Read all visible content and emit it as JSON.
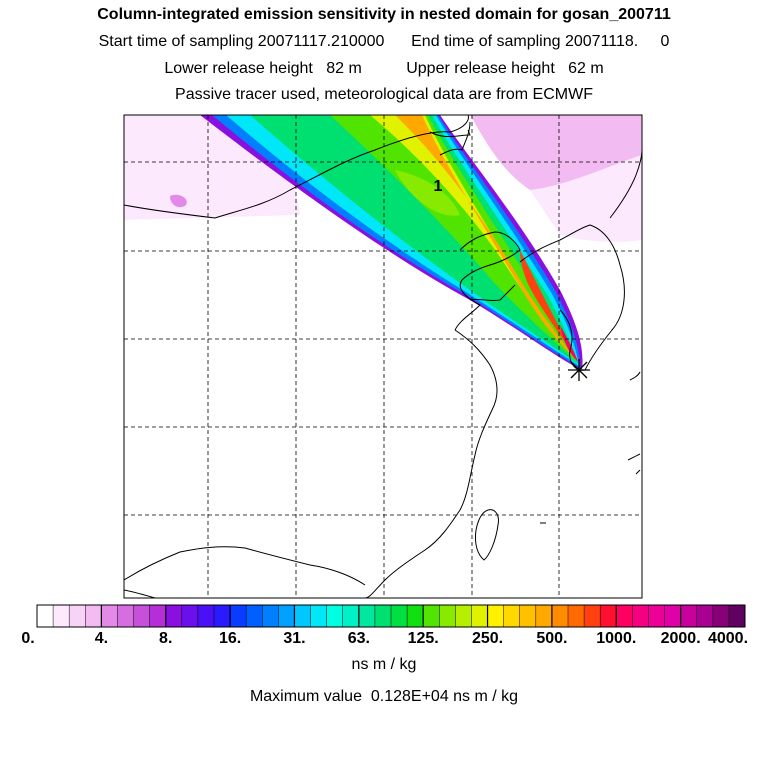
{
  "chart_data": {
    "type": "heatmap",
    "title": "Column-integrated emission sensitivity in nested domain for gosan_200711",
    "subtitle_lines": [
      "Start time of sampling 20071117.210000      End time of sampling 20071118.     0",
      "Lower release height   82 m          Upper release height   62 m",
      "Passive tracer used, meteorological data are from ECMWF"
    ],
    "map_annotation": "1",
    "colorbar": {
      "tick_labels": [
        "0.",
        "4.",
        "8.",
        "16.",
        "31.",
        "63.",
        "125.",
        "250.",
        "500.",
        "1000.",
        "2000.",
        "4000."
      ],
      "colors": [
        "#ffffff",
        "#fde9fd",
        "#f8d3f8",
        "#f2bcf2",
        "#e38ae8",
        "#d66ee0",
        "#c650da",
        "#b52ed8",
        "#8a10e0",
        "#6a10ec",
        "#4a10f6",
        "#2a1aff",
        "#0a3cff",
        "#0060ff",
        "#0080ff",
        "#00a0ff",
        "#00c8ff",
        "#00e8f8",
        "#00ffe0",
        "#00f0c8",
        "#00e8a0",
        "#00e070",
        "#00e040",
        "#10e010",
        "#50e400",
        "#88ea00",
        "#b8ee00",
        "#e0f200",
        "#fff000",
        "#ffd800",
        "#ffc000",
        "#ffa800",
        "#ff8c00",
        "#ff6a00",
        "#ff4010",
        "#ff1030",
        "#ff0060",
        "#f40080",
        "#ec0098",
        "#e000a8",
        "#c8009c",
        "#a80090",
        "#880078",
        "#600060"
      ],
      "units": "ns m / kg"
    },
    "max_value_text": "Maximum value  0.128E+04 ns m / kg",
    "receptor": "gosan"
  }
}
